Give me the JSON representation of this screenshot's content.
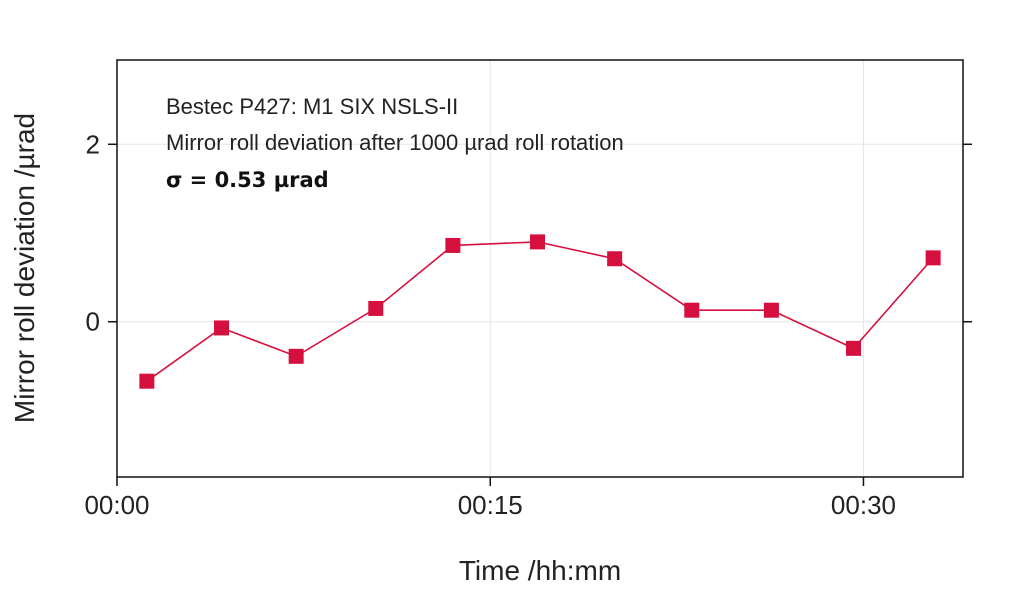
{
  "chart_data": {
    "type": "line",
    "xlabel": "Time /hh:mm",
    "ylabel": "Mirror roll deviation /µrad",
    "x_unit": "minutes",
    "xlim": [
      0,
      34
    ],
    "ylim": [
      -1.75,
      2.95
    ],
    "x_ticks": [
      {
        "value": 0,
        "label": "00:00"
      },
      {
        "value": 15,
        "label": "00:15"
      },
      {
        "value": 30,
        "label": "00:30"
      }
    ],
    "y_ticks": [
      {
        "value": 0,
        "label": "0"
      },
      {
        "value": 2,
        "label": "2"
      }
    ],
    "grid": true,
    "annotations": [
      "Bestec P427: M1 SIX NSLS-II",
      "Mirror roll deviation after 1000 µrad roll rotation",
      "σ = 0.53 µrad"
    ],
    "series": [
      {
        "color": "#d6103e",
        "marker": "square",
        "x": [
          1.2,
          4.2,
          7.2,
          10.4,
          13.5,
          16.9,
          20.0,
          23.1,
          26.3,
          29.6,
          32.8
        ],
        "y": [
          -0.67,
          -0.07,
          -0.39,
          0.15,
          0.86,
          0.9,
          0.71,
          0.13,
          0.13,
          -0.3,
          0.72
        ]
      }
    ]
  }
}
